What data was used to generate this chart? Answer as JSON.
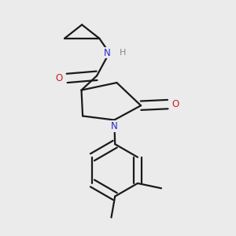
{
  "bg_color": "#ebebeb",
  "bond_color": "#1a1a1a",
  "N_color": "#2929cc",
  "O_color": "#cc2020",
  "lw": 1.6,
  "dbo": 0.018,
  "xlim": [
    0.05,
    0.95
  ],
  "ylim": [
    0.03,
    0.97
  ]
}
